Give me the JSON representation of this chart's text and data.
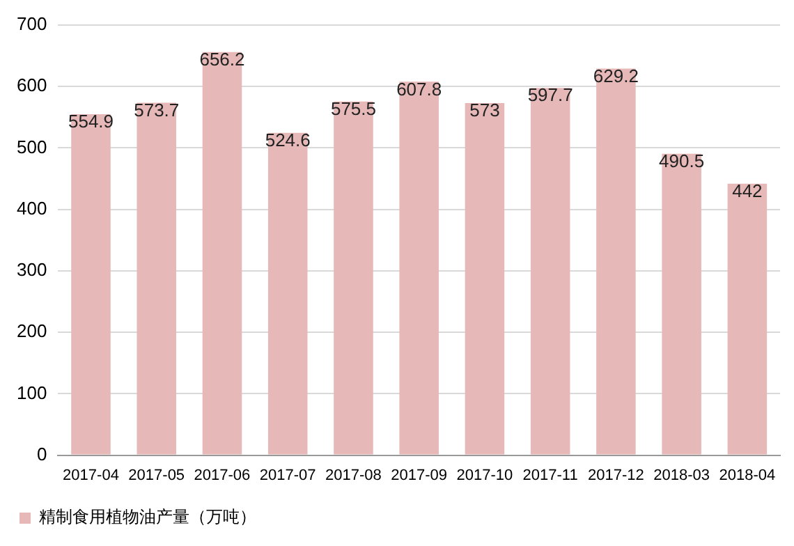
{
  "chart_data": {
    "type": "bar",
    "categories": [
      "2017-04",
      "2017-05",
      "2017-06",
      "2017-07",
      "2017-08",
      "2017-09",
      "2017-10",
      "2017-11",
      "2017-12",
      "2018-03",
      "2018-04"
    ],
    "series": [
      {
        "name": "精制食用植物油产量（万吨）",
        "color": "#e6b9b8",
        "values": [
          554.9,
          573.7,
          656.2,
          524.6,
          575.5,
          607.8,
          573,
          597.7,
          629.2,
          490.5,
          442
        ]
      }
    ],
    "ylim": [
      0,
      700
    ],
    "yticks": [
      0,
      100,
      200,
      300,
      400,
      500,
      600,
      700
    ],
    "grid": "y",
    "legend": "bottom left",
    "data_labels": true
  }
}
